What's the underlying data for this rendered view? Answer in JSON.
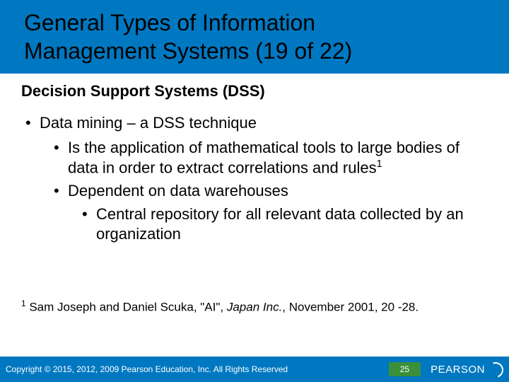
{
  "colors": {
    "brand_blue": "#0078c1",
    "badge_green": "#3a8f3a",
    "text": "#000000",
    "footer_text": "#ffffff",
    "background": "#ffffff"
  },
  "typography": {
    "title_fontsize": 32,
    "body_fontsize": 22,
    "subtitle_fontsize": 22,
    "footnote_fontsize": 17,
    "footer_fontsize": 12
  },
  "title": {
    "line1": "General Types of Information",
    "line2": "Management Systems (19 of 22)"
  },
  "subtitle": "Decision Support Systems (DSS)",
  "bullets": {
    "l1_0": "Data mining – a DSS technique",
    "l2_0_pre": "Is the application of mathematical tools to large bodies of data in order to extract correlations and rules",
    "l2_0_sup": "1",
    "l2_1": "Dependent on data warehouses",
    "l3_0": "Central repository for all relevant data collected by an organization"
  },
  "footnote": {
    "num": "1",
    "pre": " Sam Joseph and Daniel Scuka, \"AI\", ",
    "ital": "Japan Inc.",
    "post": ", November 2001, 20 -28."
  },
  "footer": {
    "copyright": "Copyright © 2015, 2012, 2009 Pearson Education, Inc. All Rights Reserved",
    "page": "25",
    "brand": "PEARSON"
  }
}
